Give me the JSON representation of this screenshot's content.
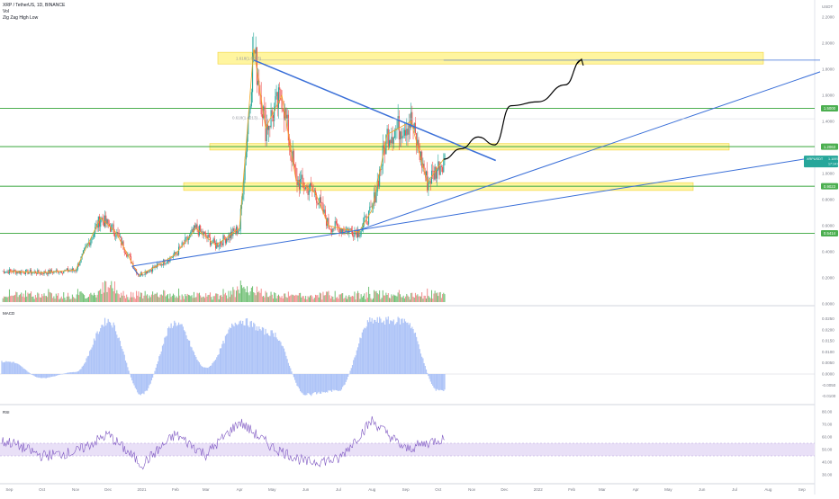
{
  "legend": {
    "symbol": "XRP / TetherUS, 1D, BINANCE",
    "line2": "Vol",
    "line3": "Zig Zag High Low"
  },
  "panels": {
    "macd_label": "MACD",
    "rsi_label": "RSI"
  },
  "price_axis": {
    "currency": "USDT",
    "ticks": [
      "2.2000",
      "2.0000",
      "1.8000",
      "1.6000",
      "1.4000",
      "1.2000",
      "1.0000",
      "0.8000",
      "0.6000",
      "0.4000",
      "0.2000",
      "0.0000",
      "-0.2000"
    ]
  },
  "macd_axis": {
    "ticks": [
      "0.0250",
      "0.0200",
      "0.0150",
      "0.0100",
      "0.0050",
      "0.0000",
      "-0.0050",
      "-0.0100"
    ]
  },
  "rsi_axis": {
    "ticks": [
      "80.00",
      "70.00",
      "60.00",
      "50.00",
      "40.00",
      "30.00"
    ]
  },
  "time_axis": {
    "labels": [
      "Sep",
      "Oct",
      "Nov",
      "Dec",
      "2021",
      "Feb",
      "Mar",
      "Apr",
      "May",
      "Jun",
      "Jul",
      "Aug",
      "Sep",
      "Oct",
      "Nov",
      "Dec",
      "2022",
      "Feb",
      "Mar",
      "Apr",
      "May",
      "Jun",
      "Jul",
      "Aug",
      "Sep",
      "Oct"
    ]
  },
  "badges": {
    "level_1_5": "1.5000",
    "level_1_2": "1.2063",
    "current_symbol": "XRPUSDT",
    "current_price": "1.1097",
    "current_time": "17:14:01",
    "level_0_9": "0.9023",
    "level_0_5": "0.5414"
  },
  "annotations": {
    "fib_top": "1.618(1.8723)",
    "fib_mid": "0.618(1.4213)"
  },
  "colors": {
    "up": "#26a69a",
    "down": "#ef5350",
    "vol_up": "#6fbf73",
    "vol_down": "#f28c8c",
    "support_green": "#4caf50",
    "trend_blue": "#3a6fd8",
    "zone_yellow": "#fff176",
    "zigzag_orange": "#f5a623",
    "macd_hist": "#aec4f7",
    "rsi_line": "#7e57c2",
    "rsi_band": "#e9e0f7"
  },
  "chart_data": {
    "type": "line",
    "title": "XRP / TetherUS, 1D, BINANCE",
    "price_series": {
      "name": "XRPUSDT",
      "x": [
        "2020-09-01",
        "2020-10-01",
        "2020-11-01",
        "2020-11-24",
        "2020-12-08",
        "2020-12-29",
        "2021-01-15",
        "2021-02-01",
        "2021-02-20",
        "2021-03-10",
        "2021-04-01",
        "2021-04-14",
        "2021-04-25",
        "2021-05-10",
        "2021-05-23",
        "2021-06-10",
        "2021-06-22",
        "2021-07-20",
        "2021-08-01",
        "2021-08-15",
        "2021-09-06",
        "2021-09-21",
        "2021-10-06"
      ],
      "close": [
        0.25,
        0.24,
        0.26,
        0.66,
        0.55,
        0.22,
        0.29,
        0.38,
        0.58,
        0.45,
        0.58,
        1.96,
        1.35,
        1.6,
        0.95,
        0.85,
        0.6,
        0.55,
        0.72,
        1.3,
        1.4,
        0.93,
        1.11
      ]
    },
    "support_levels": [
      1.5,
      1.2063,
      0.9023,
      0.5414
    ],
    "zones": [
      {
        "from": 1.84,
        "to": 1.93
      },
      {
        "from": 1.18,
        "to": 1.23
      },
      {
        "from": 0.87,
        "to": 0.93
      }
    ],
    "projection": {
      "x": [
        "2021-10-06",
        "2021-10-22",
        "2021-11-07",
        "2021-11-22",
        "2021-12-07",
        "2022-01-01",
        "2022-01-26",
        "2022-02-10"
      ],
      "y": [
        1.11,
        1.19,
        1.28,
        1.22,
        1.52,
        1.55,
        1.68,
        1.87
      ]
    },
    "macd": {
      "x": [
        "2020-09",
        "2020-10",
        "2020-11",
        "2020-12",
        "2021-01",
        "2021-02",
        "2021-03",
        "2021-04",
        "2021-05",
        "2021-06",
        "2021-07",
        "2021-08",
        "2021-09",
        "2021-10"
      ],
      "values": [
        0.006,
        -0.002,
        0.001,
        0.026,
        -0.01,
        0.025,
        0.003,
        0.026,
        0.02,
        -0.01,
        -0.008,
        0.026,
        0.026,
        -0.008
      ]
    },
    "rsi": {
      "x": [
        "2020-09",
        "2020-10",
        "2020-11",
        "2020-12",
        "2021-01",
        "2021-02",
        "2021-03",
        "2021-04",
        "2021-05",
        "2021-06",
        "2021-07",
        "2021-08",
        "2021-09",
        "2021-10"
      ],
      "values": [
        56,
        45,
        48,
        62,
        38,
        62,
        46,
        72,
        52,
        40,
        42,
        73,
        50,
        58
      ],
      "band": [
        45,
        55
      ]
    }
  }
}
